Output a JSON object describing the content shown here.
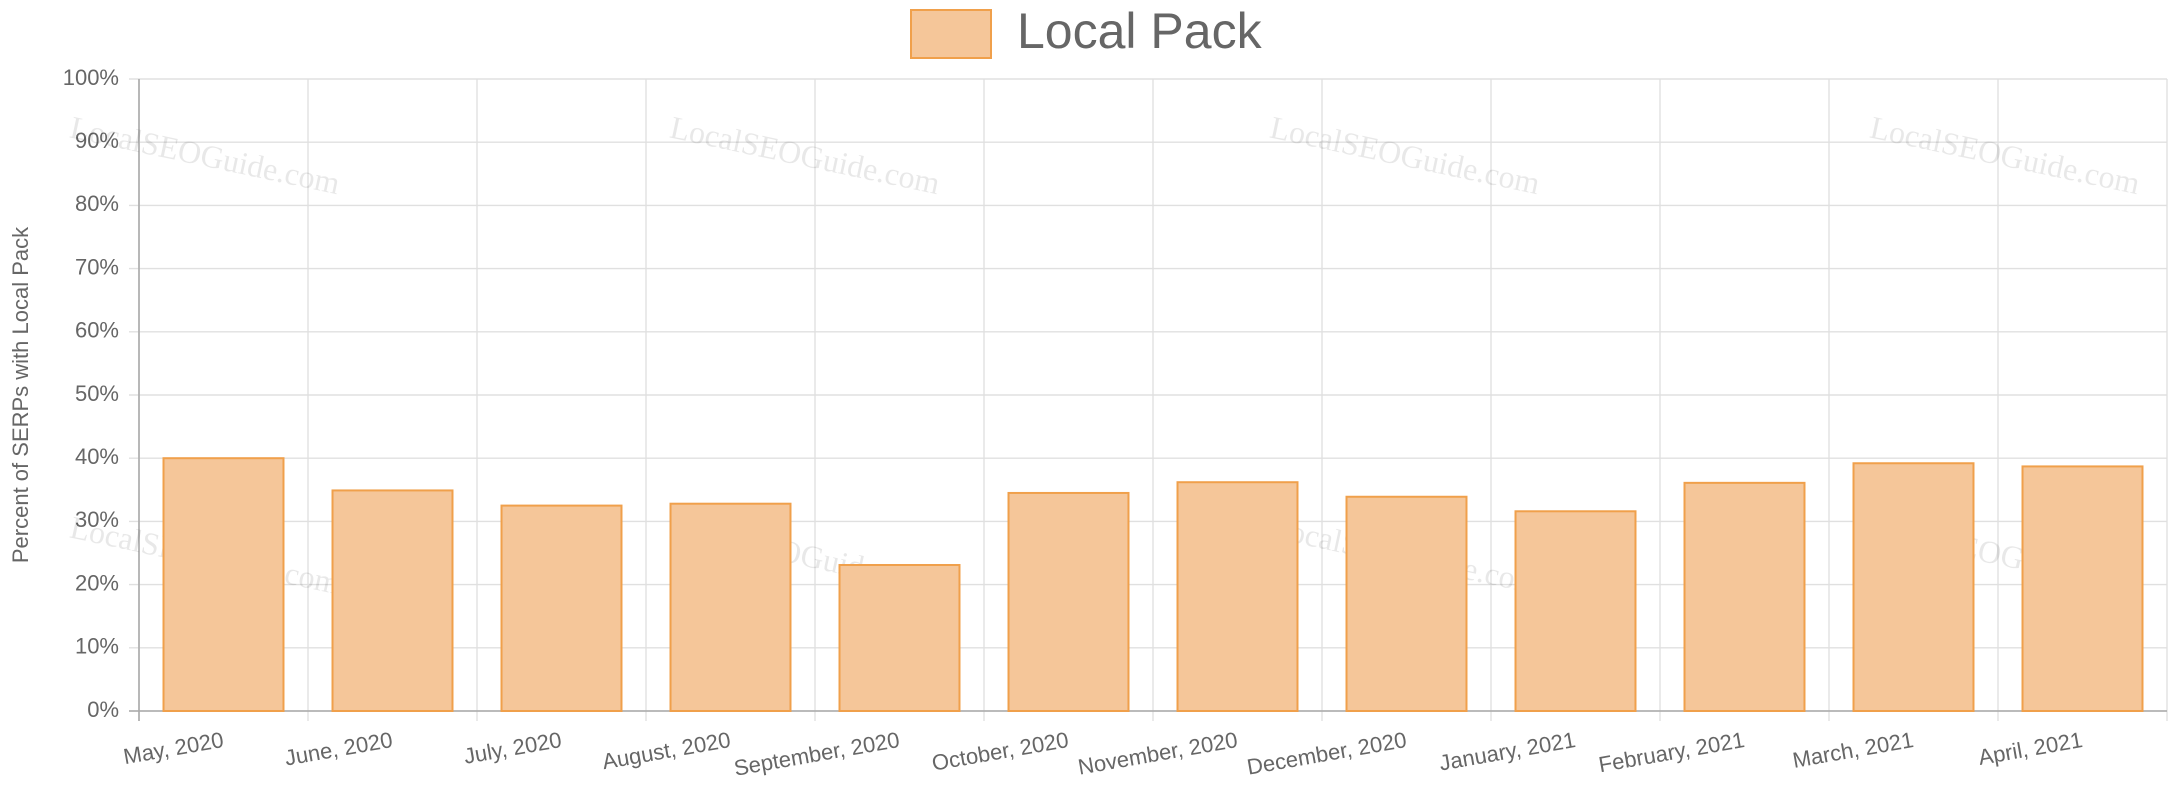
{
  "chart_data": {
    "type": "bar",
    "y_label": "Percent of SERPs with Local Pack",
    "watermark": "LocalSEOGuide.com",
    "categories": [
      "May, 2020",
      "June, 2020",
      "July, 2020",
      "August, 2020",
      "September, 2020",
      "October, 2020",
      "November, 2020",
      "December, 2020",
      "January, 2021",
      "February, 2021",
      "March, 2021",
      "April, 2021"
    ],
    "series": [
      {
        "name": "Local Pack",
        "color": "#f5c699",
        "border_color": "#f0a04b",
        "values": [
          40,
          34.9,
          32.5,
          32.8,
          23.1,
          34.5,
          36.2,
          33.9,
          31.6,
          36.1,
          39.2,
          38.7
        ]
      }
    ],
    "ylim": [
      0,
      100
    ],
    "yticks": [
      {
        "value": 0,
        "label": "0%"
      },
      {
        "value": 10,
        "label": "10%"
      },
      {
        "value": 20,
        "label": "20%"
      },
      {
        "value": 30,
        "label": "30%"
      },
      {
        "value": 40,
        "label": "40%"
      },
      {
        "value": 50,
        "label": "50%"
      },
      {
        "value": 60,
        "label": "60%"
      },
      {
        "value": 70,
        "label": "70%"
      },
      {
        "value": 80,
        "label": "80%"
      },
      {
        "value": 90,
        "label": "90%"
      },
      {
        "value": 100,
        "label": "100%"
      }
    ],
    "grid": true,
    "legend": "top"
  }
}
